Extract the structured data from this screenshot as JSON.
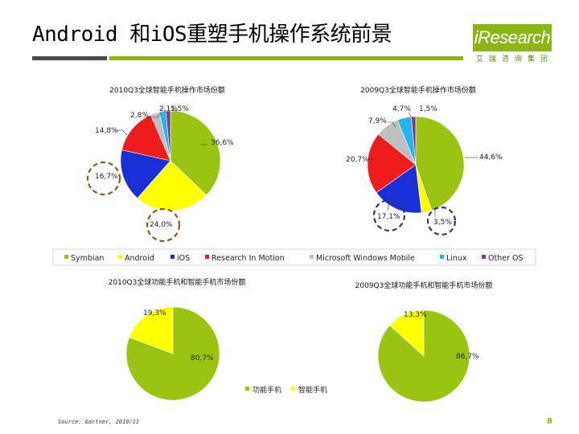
{
  "page": {
    "title": "Android 和iOS重塑手机操作系统前景",
    "logo": "iResearch",
    "logo_sub": "艾瑞咨询集团",
    "source": "Source: Gartner, 2010/11",
    "page_number": "8"
  },
  "colors": {
    "Symbian": "#99c411",
    "Android": "#ffff00",
    "iOS": "#1a2fd6",
    "Research In Motion": "#ee1c1c",
    "Microsoft Windows Mobile": "#bfbfbf",
    "Linux": "#27b4ec",
    "Other OS": "#7e3a94",
    "功能手机": "#99c411",
    "智能手机": "#ffff00",
    "title_bar_green": "#8cb518",
    "title_bar_dark": "#4a4a4a"
  },
  "chart_data": [
    {
      "type": "pie",
      "title": "2010Q3全球智能手机操作市场份额",
      "categories": [
        "Symbian",
        "Android",
        "iOS",
        "Research In Motion",
        "Microsoft Windows Mobile",
        "Linux",
        "Other OS"
      ],
      "values": [
        36.6,
        24.0,
        16.7,
        14.8,
        2.8,
        2.1,
        1.5
      ],
      "labels": [
        "36,6%",
        "24,0%",
        "16,7%",
        "14,8%",
        "2,8%",
        "2,1%",
        "1,5%"
      ]
    },
    {
      "type": "pie",
      "title": "2009Q3全球智能手机操作市场份额",
      "categories": [
        "Symbian",
        "Android",
        "iOS",
        "Research In Motion",
        "Microsoft Windows Mobile",
        "Linux",
        "Other OS"
      ],
      "values": [
        44.6,
        3.5,
        17.1,
        20.7,
        7.9,
        4.7,
        1.5
      ],
      "labels": [
        "44,6%",
        "3,5%",
        "17,1%",
        "20,7%",
        "7,9%",
        "4,7%",
        "1,5%"
      ]
    },
    {
      "type": "pie",
      "title": "2010Q3全球功能手机和智能手机市场份额",
      "categories": [
        "功能手机",
        "智能手机"
      ],
      "values": [
        80.7,
        19.3
      ],
      "labels": [
        "80,7%",
        "19,3%"
      ]
    },
    {
      "type": "pie",
      "title": "2009Q3全球功能手机和智能手机市场份额",
      "categories": [
        "功能手机",
        "智能手机"
      ],
      "values": [
        86.7,
        13.3
      ],
      "labels": [
        "86,7%",
        "13,3%"
      ]
    }
  ],
  "legends": {
    "os": [
      "Symbian",
      "Android",
      "iOS",
      "Research In Motion",
      "Microsoft Windows Mobile",
      "Linux",
      "Other OS"
    ],
    "phone_type": [
      "功能手机",
      "智能手机"
    ]
  }
}
